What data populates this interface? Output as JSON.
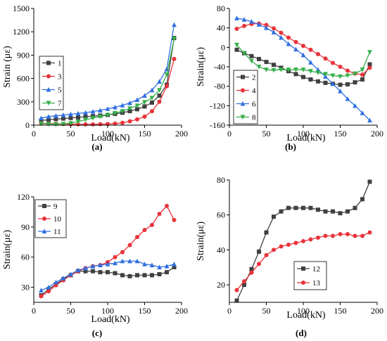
{
  "figure": {
    "panel_labels": [
      "(a)",
      "(b)",
      "(c)",
      "(d)"
    ]
  },
  "chart_data": [
    {
      "panel": "(a)",
      "type": "line",
      "xlabel": "Load(kN)",
      "ylabel": "Strain (με)",
      "xlim": [
        0,
        200
      ],
      "ylim": [
        0,
        1500
      ],
      "xticks": [
        0,
        50,
        100,
        150,
        200
      ],
      "yticks": [
        0,
        300,
        600,
        900,
        1200,
        1500
      ],
      "legend_position": "left",
      "series": [
        {
          "name": "1",
          "color": "#404040",
          "marker": "square",
          "x": [
            10,
            20,
            30,
            40,
            50,
            60,
            70,
            80,
            90,
            100,
            110,
            120,
            130,
            140,
            150,
            160,
            170,
            180,
            190
          ],
          "y": [
            60,
            70,
            78,
            85,
            92,
            100,
            108,
            116,
            124,
            132,
            145,
            160,
            180,
            205,
            240,
            290,
            380,
            520,
            1120
          ]
        },
        {
          "name": "3",
          "color": "#e8333a",
          "marker": "circle",
          "x": [
            10,
            20,
            30,
            40,
            50,
            60,
            70,
            80,
            90,
            100,
            110,
            120,
            130,
            140,
            150,
            160,
            170,
            180,
            190
          ],
          "y": [
            25,
            20,
            18,
            15,
            12,
            10,
            10,
            10,
            12,
            15,
            20,
            30,
            50,
            75,
            110,
            180,
            300,
            500,
            850
          ]
        },
        {
          "name": "5",
          "color": "#2f6fe0",
          "marker": "triangle",
          "x": [
            10,
            20,
            30,
            40,
            50,
            60,
            70,
            80,
            90,
            100,
            110,
            120,
            130,
            140,
            150,
            160,
            170,
            180,
            190
          ],
          "y": [
            90,
            110,
            120,
            130,
            140,
            150,
            160,
            175,
            190,
            210,
            230,
            255,
            285,
            325,
            380,
            450,
            560,
            720,
            1290
          ]
        },
        {
          "name": "7",
          "color": "#35b04a",
          "marker": "triangle-down",
          "x": [
            10,
            20,
            30,
            40,
            50,
            60,
            70,
            80,
            90,
            100,
            110,
            120,
            130,
            140,
            150,
            160,
            170,
            180,
            190
          ],
          "y": [
            20,
            15,
            10,
            15,
            25,
            45,
            70,
            90,
            110,
            130,
            155,
            180,
            215,
            250,
            295,
            350,
            450,
            650,
            1110
          ]
        }
      ]
    },
    {
      "panel": "(b)",
      "type": "line",
      "xlabel": "Load(kN)",
      "ylabel": "Strain(με)",
      "xlim": [
        0,
        200
      ],
      "ylim": [
        -160,
        80
      ],
      "xticks": [
        0,
        50,
        100,
        150,
        200
      ],
      "yticks": [
        -160,
        -120,
        -80,
        -40,
        0,
        40,
        80
      ],
      "legend_position": "bottom-left",
      "series": [
        {
          "name": "2",
          "color": "#404040",
          "marker": "square",
          "x": [
            10,
            20,
            30,
            40,
            50,
            60,
            70,
            80,
            90,
            100,
            110,
            120,
            130,
            140,
            150,
            160,
            170,
            180,
            190
          ],
          "y": [
            -5,
            -12,
            -18,
            -24,
            -30,
            -36,
            -42,
            -49,
            -55,
            -61,
            -66,
            -70,
            -73,
            -75,
            -77,
            -76,
            -72,
            -66,
            -35
          ]
        },
        {
          "name": "4",
          "color": "#e8333a",
          "marker": "circle",
          "x": [
            10,
            20,
            30,
            40,
            50,
            60,
            70,
            80,
            90,
            100,
            110,
            120,
            130,
            140,
            150,
            160,
            170,
            180,
            190
          ],
          "y": [
            38,
            44,
            48,
            49,
            46,
            39,
            30,
            20,
            11,
            3,
            -5,
            -14,
            -23,
            -32,
            -40,
            -48,
            -54,
            -56,
            -42
          ]
        },
        {
          "name": "6",
          "color": "#2f6fe0",
          "marker": "triangle",
          "x": [
            10,
            20,
            30,
            40,
            50,
            60,
            70,
            80,
            90,
            100,
            110,
            120,
            130,
            140,
            150,
            160,
            170,
            180,
            190
          ],
          "y": [
            60,
            57,
            53,
            47,
            40,
            31,
            20,
            7,
            -4,
            -16,
            -31,
            -46,
            -60,
            -75,
            -90,
            -106,
            -120,
            -135,
            -150
          ]
        },
        {
          "name": "8",
          "color": "#35b04a",
          "marker": "triangle-down",
          "x": [
            10,
            20,
            30,
            40,
            50,
            60,
            70,
            80,
            90,
            100,
            110,
            120,
            130,
            140,
            150,
            160,
            170,
            180,
            190
          ],
          "y": [
            5,
            -12,
            -28,
            -40,
            -46,
            -47,
            -46,
            -46,
            -46,
            -46,
            -49,
            -52,
            -55,
            -58,
            -60,
            -58,
            -54,
            -46,
            -10
          ]
        }
      ]
    },
    {
      "panel": "(c)",
      "type": "line",
      "xlabel": "Load(kN)",
      "ylabel": "Strain(με)",
      "xlim": [
        0,
        200
      ],
      "ylim": [
        15,
        120
      ],
      "xticks": [
        0,
        50,
        100,
        150,
        200
      ],
      "yticks": [
        30,
        60,
        90,
        120
      ],
      "legend_position": "top-left",
      "series": [
        {
          "name": "9",
          "color": "#404040",
          "marker": "square",
          "x": [
            10,
            20,
            30,
            40,
            50,
            60,
            70,
            80,
            90,
            100,
            110,
            120,
            130,
            140,
            150,
            160,
            170,
            180,
            190
          ],
          "y": [
            22,
            28,
            33,
            38,
            42,
            46,
            46,
            46,
            45,
            45,
            44,
            42,
            41,
            42,
            42,
            42,
            43,
            45,
            50
          ]
        },
        {
          "name": "10",
          "color": "#e8333a",
          "marker": "circle",
          "x": [
            10,
            20,
            30,
            40,
            50,
            60,
            70,
            80,
            90,
            100,
            110,
            120,
            130,
            140,
            150,
            160,
            170,
            180,
            190
          ],
          "y": [
            21,
            26,
            32,
            37,
            42,
            46,
            49,
            51,
            52,
            55,
            60,
            65,
            72,
            80,
            87,
            92,
            103,
            111,
            97
          ]
        },
        {
          "name": "11",
          "color": "#2f6fe0",
          "marker": "triangle",
          "x": [
            10,
            20,
            30,
            40,
            50,
            60,
            70,
            80,
            90,
            100,
            110,
            120,
            130,
            140,
            150,
            160,
            170,
            180,
            190
          ],
          "y": [
            27,
            30,
            35,
            39,
            43,
            47,
            49,
            51,
            52,
            53,
            54,
            56,
            56,
            56,
            53,
            52,
            50,
            51,
            53
          ]
        }
      ]
    },
    {
      "panel": "(d)",
      "type": "line",
      "xlabel": "Load(kN)",
      "ylabel": "Strain(με)",
      "xlim": [
        0,
        200
      ],
      "ylim": [
        10,
        80
      ],
      "xticks": [
        0,
        50,
        100,
        150,
        200
      ],
      "yticks": [
        20,
        40,
        60,
        80
      ],
      "legend_position": "bottom-right",
      "series": [
        {
          "name": "12",
          "color": "#404040",
          "marker": "square",
          "x": [
            10,
            20,
            30,
            40,
            50,
            60,
            70,
            80,
            90,
            100,
            110,
            120,
            130,
            140,
            150,
            160,
            170,
            180,
            190
          ],
          "y": [
            11,
            20,
            29,
            39,
            50,
            59,
            62,
            64,
            64,
            64,
            64,
            63,
            62,
            62,
            61,
            62,
            64,
            69,
            79
          ]
        },
        {
          "name": "13",
          "color": "#e8333a",
          "marker": "circle",
          "x": [
            10,
            20,
            30,
            40,
            50,
            60,
            70,
            80,
            90,
            100,
            110,
            120,
            130,
            140,
            150,
            160,
            170,
            180,
            190
          ],
          "y": [
            17,
            22,
            27,
            32,
            37,
            40,
            42,
            43,
            44,
            45,
            46,
            47,
            48,
            48,
            49,
            49,
            48,
            48,
            50
          ]
        }
      ]
    }
  ]
}
